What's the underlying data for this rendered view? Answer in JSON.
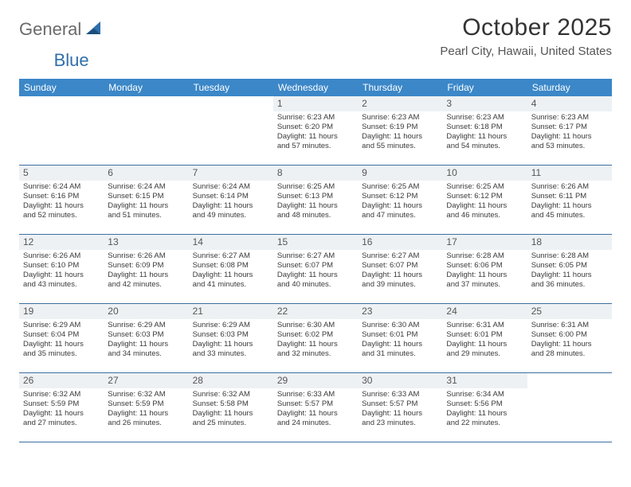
{
  "brand": {
    "part1": "General",
    "part2": "Blue"
  },
  "title": "October 2025",
  "location": "Pearl City, Hawaii, United States",
  "colors": {
    "header_bg": "#3b87c8",
    "header_text": "#ffffff",
    "daynum_bg": "#eef1f4",
    "week_border": "#3b6fa0",
    "body_text": "#3a3a3a",
    "title_text": "#333333",
    "location_text": "#555555",
    "brand_gray": "#6a6a6a",
    "brand_blue": "#2f6fab"
  },
  "dow": [
    "Sunday",
    "Monday",
    "Tuesday",
    "Wednesday",
    "Thursday",
    "Friday",
    "Saturday"
  ],
  "weeks": [
    [
      null,
      null,
      null,
      {
        "n": "1",
        "sr": "6:23 AM",
        "ss": "6:20 PM",
        "dl1": "11 hours",
        "dl2": "and 57 minutes."
      },
      {
        "n": "2",
        "sr": "6:23 AM",
        "ss": "6:19 PM",
        "dl1": "11 hours",
        "dl2": "and 55 minutes."
      },
      {
        "n": "3",
        "sr": "6:23 AM",
        "ss": "6:18 PM",
        "dl1": "11 hours",
        "dl2": "and 54 minutes."
      },
      {
        "n": "4",
        "sr": "6:23 AM",
        "ss": "6:17 PM",
        "dl1": "11 hours",
        "dl2": "and 53 minutes."
      }
    ],
    [
      {
        "n": "5",
        "sr": "6:24 AM",
        "ss": "6:16 PM",
        "dl1": "11 hours",
        "dl2": "and 52 minutes."
      },
      {
        "n": "6",
        "sr": "6:24 AM",
        "ss": "6:15 PM",
        "dl1": "11 hours",
        "dl2": "and 51 minutes."
      },
      {
        "n": "7",
        "sr": "6:24 AM",
        "ss": "6:14 PM",
        "dl1": "11 hours",
        "dl2": "and 49 minutes."
      },
      {
        "n": "8",
        "sr": "6:25 AM",
        "ss": "6:13 PM",
        "dl1": "11 hours",
        "dl2": "and 48 minutes."
      },
      {
        "n": "9",
        "sr": "6:25 AM",
        "ss": "6:12 PM",
        "dl1": "11 hours",
        "dl2": "and 47 minutes."
      },
      {
        "n": "10",
        "sr": "6:25 AM",
        "ss": "6:12 PM",
        "dl1": "11 hours",
        "dl2": "and 46 minutes."
      },
      {
        "n": "11",
        "sr": "6:26 AM",
        "ss": "6:11 PM",
        "dl1": "11 hours",
        "dl2": "and 45 minutes."
      }
    ],
    [
      {
        "n": "12",
        "sr": "6:26 AM",
        "ss": "6:10 PM",
        "dl1": "11 hours",
        "dl2": "and 43 minutes."
      },
      {
        "n": "13",
        "sr": "6:26 AM",
        "ss": "6:09 PM",
        "dl1": "11 hours",
        "dl2": "and 42 minutes."
      },
      {
        "n": "14",
        "sr": "6:27 AM",
        "ss": "6:08 PM",
        "dl1": "11 hours",
        "dl2": "and 41 minutes."
      },
      {
        "n": "15",
        "sr": "6:27 AM",
        "ss": "6:07 PM",
        "dl1": "11 hours",
        "dl2": "and 40 minutes."
      },
      {
        "n": "16",
        "sr": "6:27 AM",
        "ss": "6:07 PM",
        "dl1": "11 hours",
        "dl2": "and 39 minutes."
      },
      {
        "n": "17",
        "sr": "6:28 AM",
        "ss": "6:06 PM",
        "dl1": "11 hours",
        "dl2": "and 37 minutes."
      },
      {
        "n": "18",
        "sr": "6:28 AM",
        "ss": "6:05 PM",
        "dl1": "11 hours",
        "dl2": "and 36 minutes."
      }
    ],
    [
      {
        "n": "19",
        "sr": "6:29 AM",
        "ss": "6:04 PM",
        "dl1": "11 hours",
        "dl2": "and 35 minutes."
      },
      {
        "n": "20",
        "sr": "6:29 AM",
        "ss": "6:03 PM",
        "dl1": "11 hours",
        "dl2": "and 34 minutes."
      },
      {
        "n": "21",
        "sr": "6:29 AM",
        "ss": "6:03 PM",
        "dl1": "11 hours",
        "dl2": "and 33 minutes."
      },
      {
        "n": "22",
        "sr": "6:30 AM",
        "ss": "6:02 PM",
        "dl1": "11 hours",
        "dl2": "and 32 minutes."
      },
      {
        "n": "23",
        "sr": "6:30 AM",
        "ss": "6:01 PM",
        "dl1": "11 hours",
        "dl2": "and 31 minutes."
      },
      {
        "n": "24",
        "sr": "6:31 AM",
        "ss": "6:01 PM",
        "dl1": "11 hours",
        "dl2": "and 29 minutes."
      },
      {
        "n": "25",
        "sr": "6:31 AM",
        "ss": "6:00 PM",
        "dl1": "11 hours",
        "dl2": "and 28 minutes."
      }
    ],
    [
      {
        "n": "26",
        "sr": "6:32 AM",
        "ss": "5:59 PM",
        "dl1": "11 hours",
        "dl2": "and 27 minutes."
      },
      {
        "n": "27",
        "sr": "6:32 AM",
        "ss": "5:59 PM",
        "dl1": "11 hours",
        "dl2": "and 26 minutes."
      },
      {
        "n": "28",
        "sr": "6:32 AM",
        "ss": "5:58 PM",
        "dl1": "11 hours",
        "dl2": "and 25 minutes."
      },
      {
        "n": "29",
        "sr": "6:33 AM",
        "ss": "5:57 PM",
        "dl1": "11 hours",
        "dl2": "and 24 minutes."
      },
      {
        "n": "30",
        "sr": "6:33 AM",
        "ss": "5:57 PM",
        "dl1": "11 hours",
        "dl2": "and 23 minutes."
      },
      {
        "n": "31",
        "sr": "6:34 AM",
        "ss": "5:56 PM",
        "dl1": "11 hours",
        "dl2": "and 22 minutes."
      },
      null
    ]
  ],
  "labels": {
    "sunrise": "Sunrise:",
    "sunset": "Sunset:",
    "daylight": "Daylight:"
  }
}
